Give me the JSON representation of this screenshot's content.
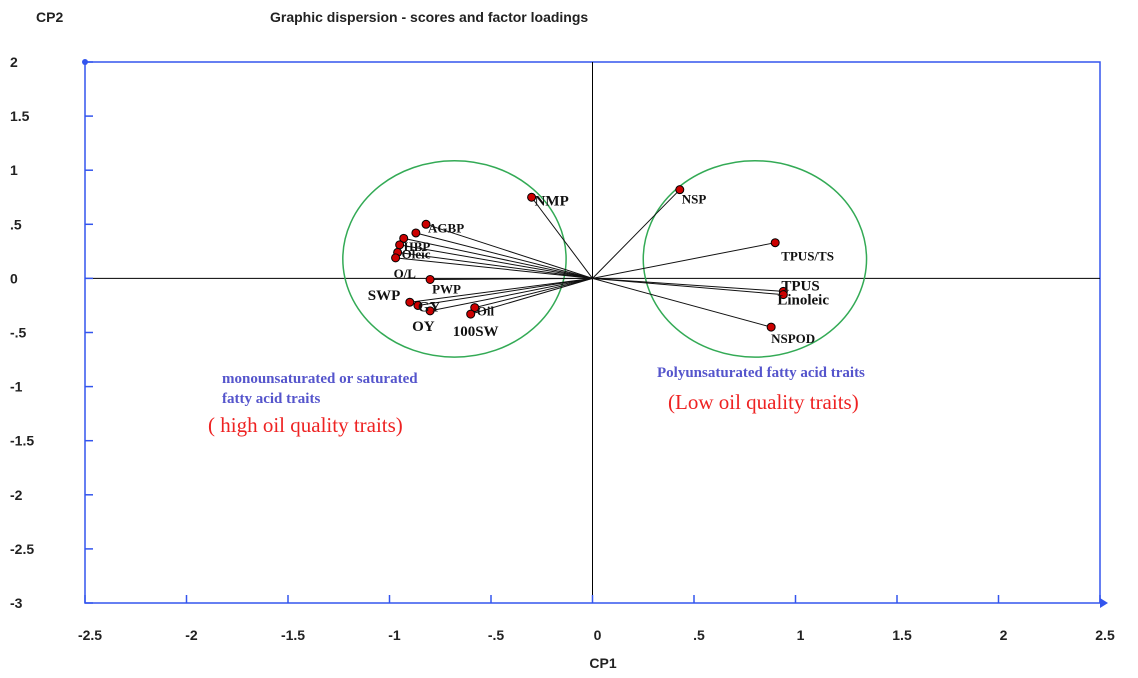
{
  "chart_data": {
    "type": "scatter",
    "title": "Graphic dispersion - scores and factor loadings",
    "xlabel": "CP1",
    "ylabel": "CP2",
    "xlim": [
      -2.5,
      2.5
    ],
    "ylim": [
      -3,
      2
    ],
    "x_ticks": [
      "-2.5",
      "-2",
      "-1.5",
      "-1",
      "-.5",
      "0",
      ".5",
      "1",
      "1.5",
      "2",
      "2.5"
    ],
    "y_ticks": [
      "2",
      "1.5",
      "1",
      ".5",
      "0",
      "-.5",
      "-1",
      "-1.5",
      "-2",
      "-2.5",
      "-3"
    ],
    "grid": false,
    "axis_color": "#3355ee",
    "marker_color": "#cc0000",
    "group_circle_color": "#33aa55",
    "points": [
      {
        "label": "NMP",
        "x": -0.3,
        "y": 0.75
      },
      {
        "label": "AGBP",
        "x": -0.82,
        "y": 0.5
      },
      {
        "label": "",
        "x": -0.87,
        "y": 0.42
      },
      {
        "label": "",
        "x": -0.93,
        "y": 0.37
      },
      {
        "label": "HBP",
        "x": -0.95,
        "y": 0.31
      },
      {
        "label": "Oleic",
        "x": -0.96,
        "y": 0.24
      },
      {
        "label": "O/L",
        "x": -0.97,
        "y": 0.19
      },
      {
        "label": "PWP",
        "x": -0.8,
        "y": -0.01
      },
      {
        "label": "SWP",
        "x": -0.9,
        "y": -0.22
      },
      {
        "label": "GY",
        "x": -0.86,
        "y": -0.25
      },
      {
        "label": "OY",
        "x": -0.8,
        "y": -0.3
      },
      {
        "label": "Oil",
        "x": -0.58,
        "y": -0.27
      },
      {
        "label": "100SW",
        "x": -0.6,
        "y": -0.33
      },
      {
        "label": "NSP",
        "x": 0.43,
        "y": 0.82
      },
      {
        "label": "TPUS/TS",
        "x": 0.9,
        "y": 0.33
      },
      {
        "label": "TPUS",
        "x": 0.94,
        "y": -0.12
      },
      {
        "label": "Linoleic",
        "x": 0.94,
        "y": -0.15
      },
      {
        "label": "NSPOD",
        "x": 0.88,
        "y": -0.45
      }
    ],
    "groups": [
      {
        "name": "monounsaturated or saturated\nfatty acid traits",
        "quality": "( high oil quality traits)",
        "cx": -0.68,
        "cy": 0.18,
        "r": 0.55
      },
      {
        "name": "Polyunsaturated fatty acid traits",
        "quality": "(Low oil quality traits)",
        "cx": 0.8,
        "cy": 0.18,
        "r": 0.55
      }
    ]
  }
}
